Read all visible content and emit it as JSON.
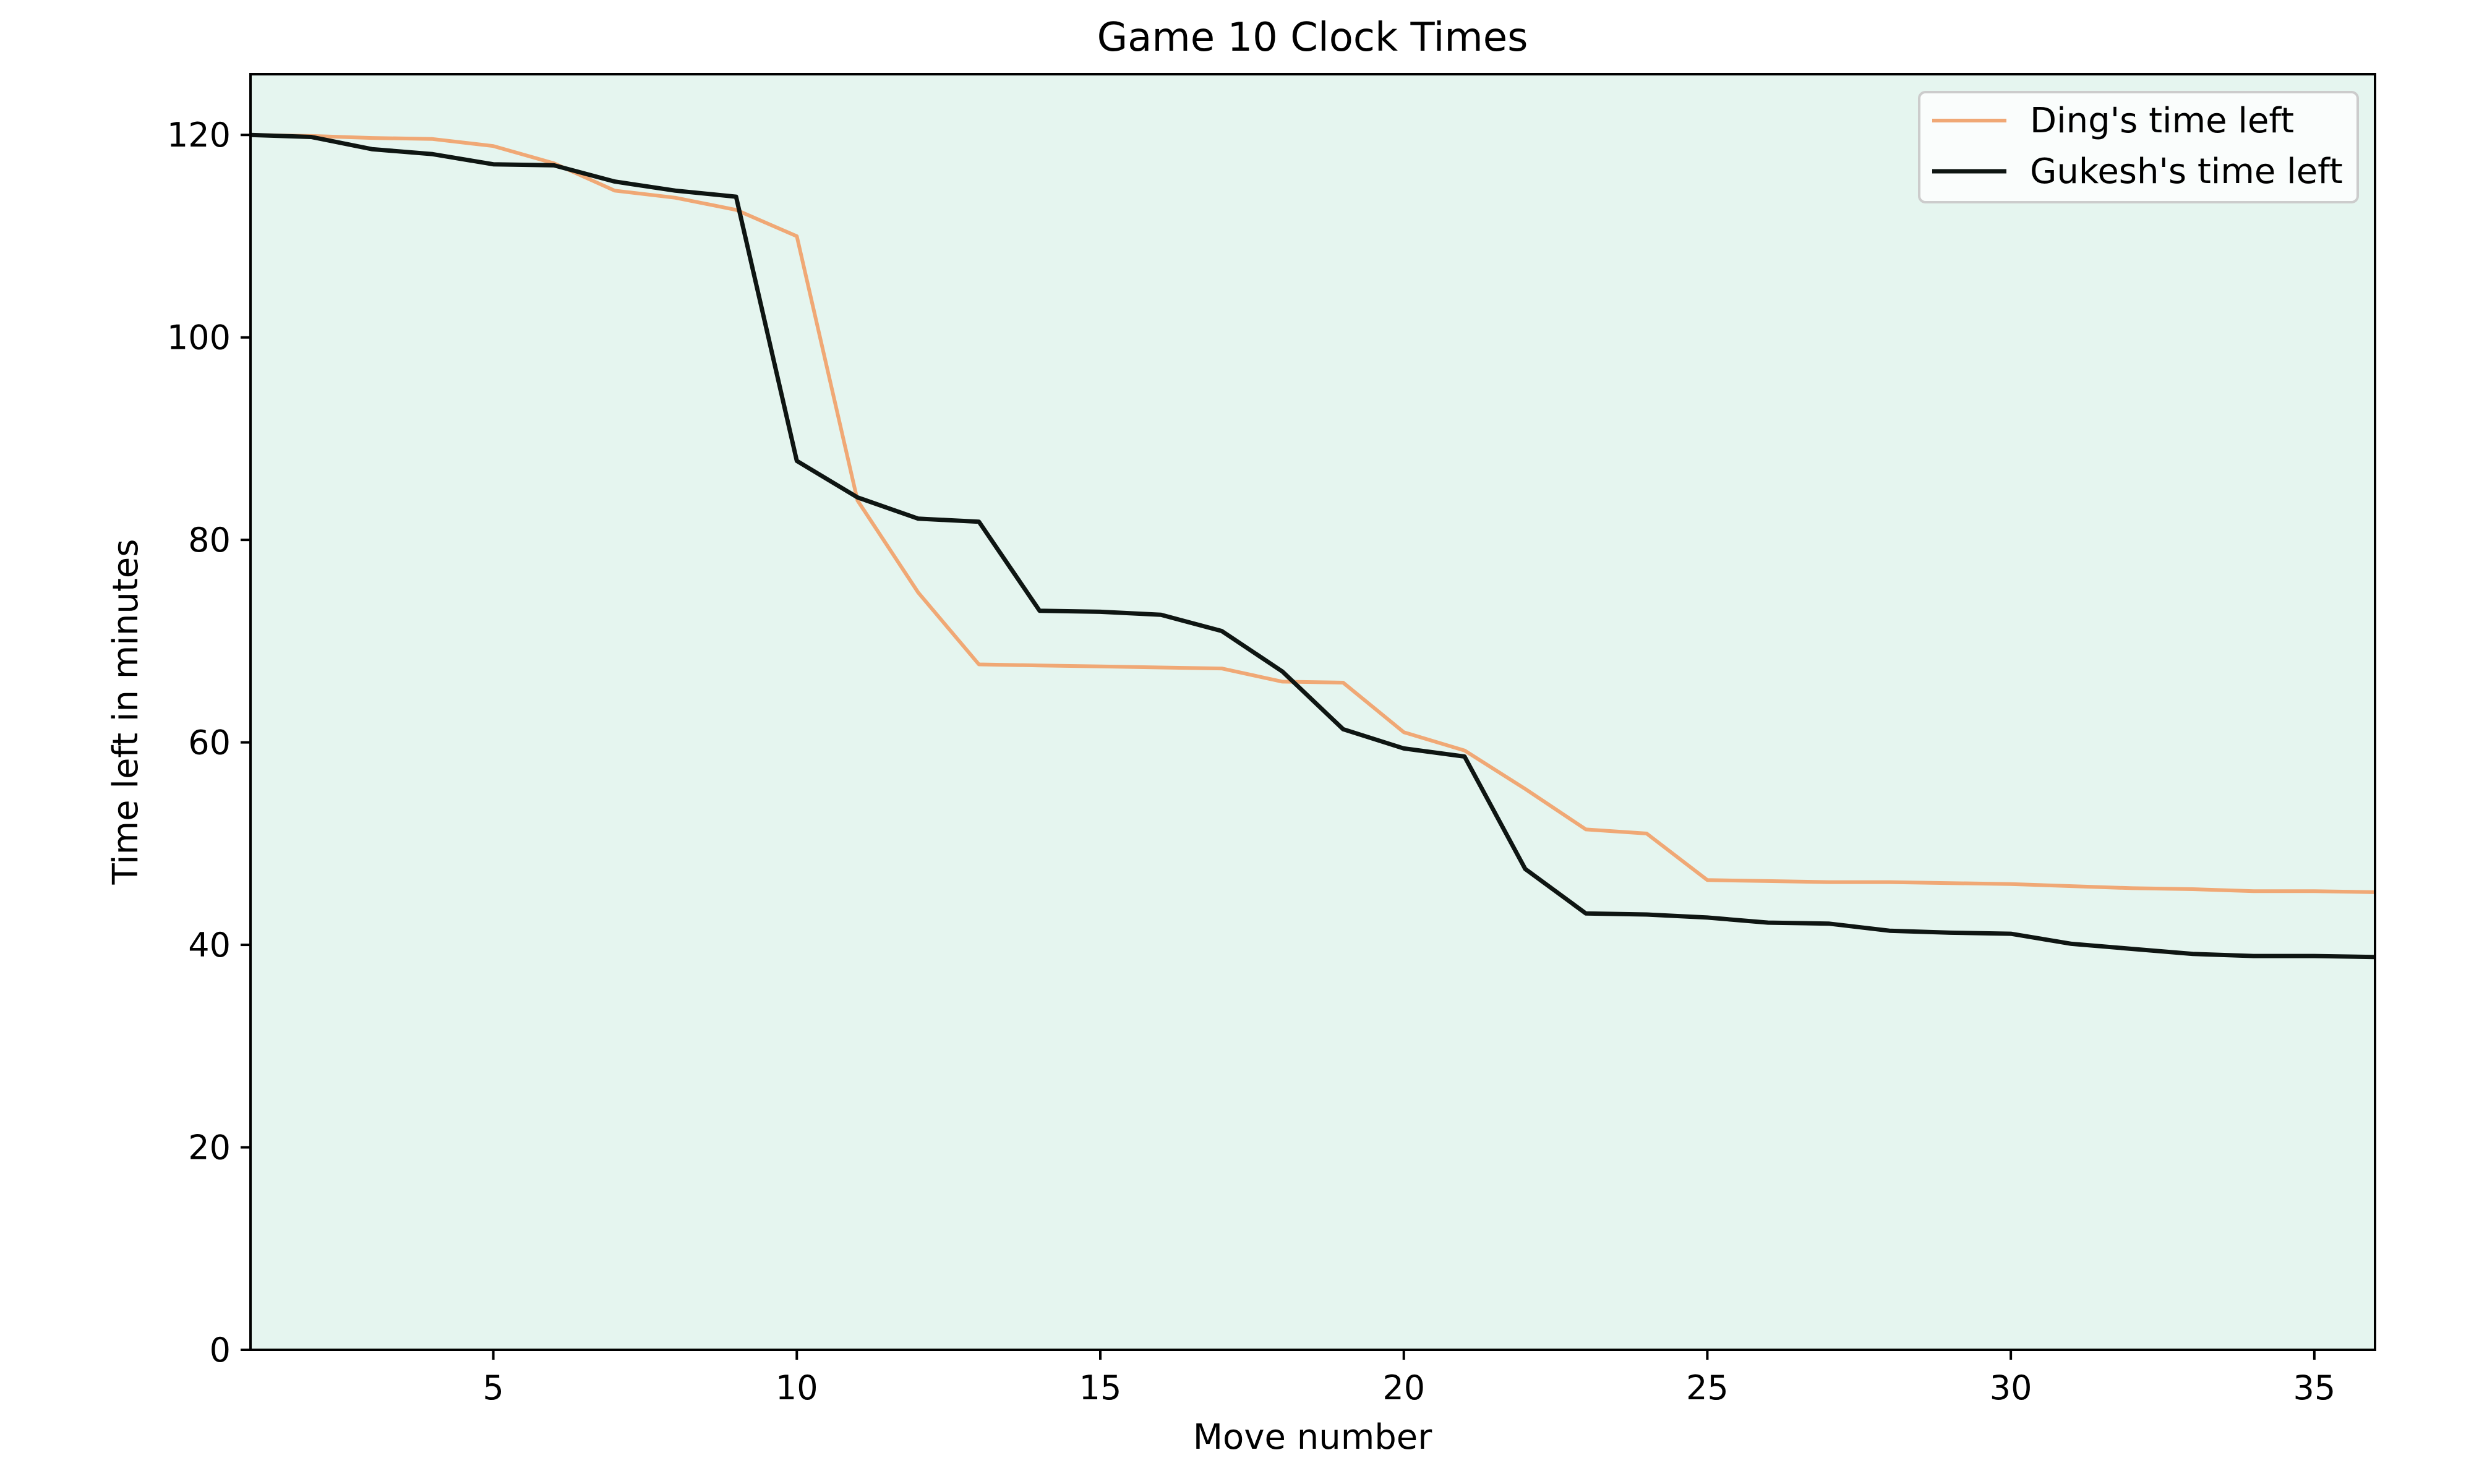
{
  "chart_data": {
    "type": "line",
    "title": "Game 10 Clock Times",
    "xlabel": "Move number",
    "ylabel": "Time left in minutes",
    "xlim": [
      1,
      36
    ],
    "ylim": [
      0,
      126
    ],
    "xticks": [
      5,
      10,
      15,
      20,
      25,
      30,
      35
    ],
    "yticks": [
      0,
      20,
      40,
      60,
      80,
      100,
      120
    ],
    "grid": false,
    "legend_position": "top-right",
    "plot_background": "#e5f5ef",
    "x": [
      1,
      2,
      3,
      4,
      5,
      6,
      7,
      8,
      9,
      10,
      11,
      12,
      13,
      14,
      15,
      16,
      17,
      18,
      19,
      20,
      21,
      22,
      23,
      24,
      25,
      26,
      27,
      28,
      29,
      30,
      31,
      32,
      33,
      34,
      35,
      36
    ],
    "series": [
      {
        "name": "Ding's time left",
        "color": "#f0a875",
        "values": [
          120,
          119.9,
          119.7,
          119.6,
          118.9,
          117.2,
          114.5,
          113.8,
          112.6,
          110,
          83.9,
          74.8,
          67.7,
          67.6,
          67.5,
          67.4,
          67.3,
          66,
          65.9,
          61,
          59.2,
          55.4,
          51.4,
          51,
          46.4,
          46.3,
          46.2,
          46.2,
          46.1,
          46,
          45.8,
          45.6,
          45.5,
          45.3,
          45.3,
          45.2
        ],
        "stroke_width": 6
      },
      {
        "name": "Gukesh's time left",
        "color": "#0e1512",
        "values": [
          120,
          119.8,
          118.6,
          118.1,
          117.1,
          117,
          115.4,
          114.5,
          113.9,
          87.8,
          84.2,
          82.1,
          81.8,
          73,
          72.9,
          72.6,
          71,
          67,
          61.3,
          59.4,
          58.6,
          47.5,
          43.1,
          43,
          42.7,
          42.2,
          42.1,
          41.4,
          41.2,
          41.1,
          40.1,
          39.6,
          39.1,
          38.9,
          38.9,
          38.8
        ],
        "stroke_width": 7
      }
    ]
  }
}
